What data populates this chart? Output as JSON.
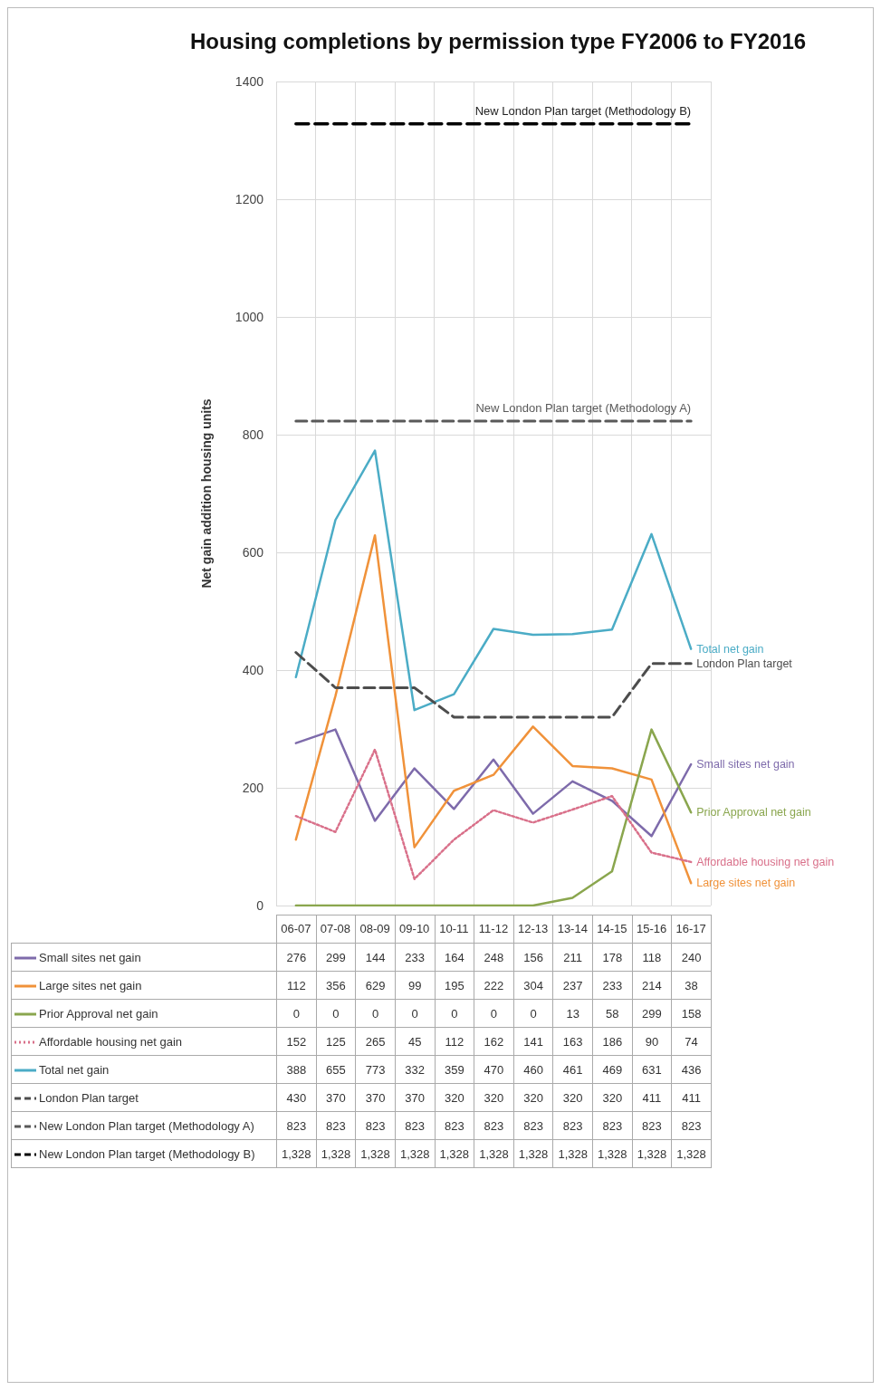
{
  "chart_data": {
    "type": "line",
    "title": "Housing completions by permission type FY2006 to FY2016",
    "ylabel": "Net gain addition housing units",
    "categories": [
      "06-07",
      "07-08",
      "08-09",
      "09-10",
      "10-11",
      "11-12",
      "12-13",
      "13-14",
      "14-15",
      "15-16",
      "16-17"
    ],
    "series": [
      {
        "name": "Small sites net gain",
        "color": "#7e6bab",
        "values": [
          276,
          299,
          144,
          233,
          164,
          248,
          156,
          211,
          178,
          118,
          240
        ]
      },
      {
        "name": "Large sites net gain",
        "color": "#f0923a",
        "values": [
          112,
          356,
          629,
          99,
          195,
          222,
          304,
          237,
          233,
          214,
          38
        ]
      },
      {
        "name": "Prior Approval net gain",
        "color": "#8aa64e",
        "values": [
          0,
          0,
          0,
          0,
          0,
          0,
          0,
          13,
          58,
          299,
          158
        ]
      },
      {
        "name": "Affordable housing net gain",
        "color": "#d9708a",
        "line_style": "dotted",
        "values": [
          152,
          125,
          265,
          45,
          112,
          162,
          141,
          163,
          186,
          90,
          74
        ]
      },
      {
        "name": "Total net gain",
        "color": "#4bacc6",
        "values": [
          388,
          655,
          773,
          332,
          359,
          470,
          460,
          461,
          469,
          631,
          436
        ]
      },
      {
        "name": "London Plan target",
        "color": "#4d4d4d",
        "line_style": "dashed",
        "values": [
          430,
          370,
          370,
          370,
          320,
          320,
          320,
          320,
          320,
          411,
          411
        ]
      },
      {
        "name": "New London Plan target (Methodology A)",
        "color": "#595959",
        "line_style": "dashed",
        "values": [
          823,
          823,
          823,
          823,
          823,
          823,
          823,
          823,
          823,
          823,
          823
        ]
      },
      {
        "name": "New London Plan target (Methodology B)",
        "color": "#000000",
        "line_style": "dashed",
        "values": [
          1328,
          1328,
          1328,
          1328,
          1328,
          1328,
          1328,
          1328,
          1328,
          1328,
          1328
        ],
        "value_labels": [
          "1,328",
          "1,328",
          "1,328",
          "1,328",
          "1,328",
          "1,328",
          "1,328",
          "1,328",
          "1,328",
          "1,328",
          "1,328"
        ]
      }
    ],
    "ylim": [
      0,
      1400
    ],
    "yticks": [
      0,
      200,
      400,
      600,
      800,
      1000,
      1200,
      1400
    ],
    "grid": true,
    "legend": "bottom",
    "marker": "none",
    "line_style": "solid",
    "data_labels": true
  }
}
